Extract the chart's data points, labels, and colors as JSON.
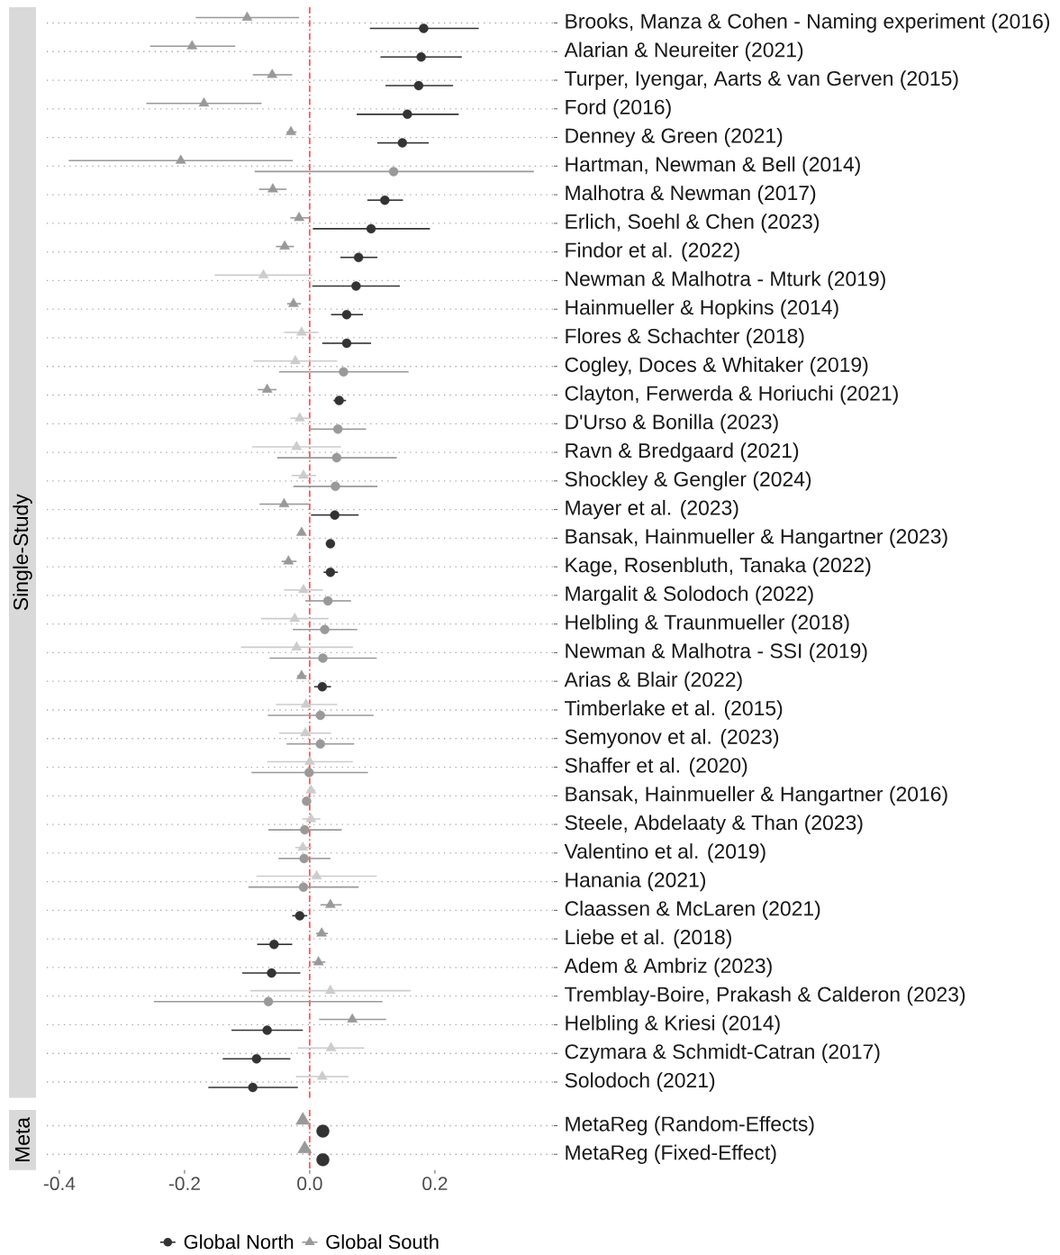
{
  "chart_data": [
    {
      "type": "scatter",
      "orientation": "horizontal",
      "title": "Single-Study",
      "categories": [
        "Brooks, Manza & Cohen - Naming experiment (2016)",
        "Alarian & Neureiter (2021)",
        "Turper, Iyengar, Aarts & van Gerven (2015)",
        "Ford (2016)",
        "Denney & Green (2021)",
        "Hartman, Newman & Bell (2014)",
        "Malhotra & Newman (2017)",
        "Erlich, Soehl & Chen (2023)",
        "Findor et al. (2022)",
        "Newman & Malhotra - Mturk (2019)",
        "Hainmueller & Hopkins (2014)",
        "Flores & Schachter (2018)",
        "Cogley, Doces & Whitaker (2019)",
        "Clayton, Ferwerda & Horiuchi (2021)",
        "D'Urso & Bonilla (2023)",
        "Ravn & Bredgaard (2021)",
        "Shockley & Gengler (2024)",
        "Mayer et al. (2023)",
        "Bansak, Hainmueller & Hangartner (2023)",
        "Kage, Rosenbluth, Tanaka (2022)",
        "Margalit & Solodoch (2022)",
        "Helbling & Traunmueller (2018)",
        "Newman & Malhotra - SSI (2019)",
        "Arias & Blair (2022)",
        "Timberlake et al. (2015)",
        "Semyonov et al. (2023)",
        "Shaffer et al. (2020)",
        "Bansak, Hainmueller & Hangartner (2016)",
        "Steele, Abdelaaty & Than (2023)",
        "Valentino et al. (2019)",
        "Hanania (2021)",
        "Claassen & McLaren (2021)",
        "Liebe et al. (2018)",
        "Adem & Ambriz (2023)",
        "Tremblay-Boire, Prakash & Calderon (2023)",
        "Helbling & Kriesi (2014)",
        "Czymara & Schmidt-Catran (2017)",
        "Solodoch (2021)"
      ],
      "series": [
        {
          "marker": "circle",
          "values": [
            0.182,
            0.178,
            0.174,
            0.156,
            0.148,
            0.134,
            0.12,
            0.098,
            0.078,
            0.074,
            0.059,
            0.059,
            0.054,
            0.047,
            0.045,
            0.043,
            0.041,
            0.04,
            0.033,
            0.033,
            0.029,
            0.024,
            0.021,
            0.02,
            0.017,
            0.017,
            -0.001,
            -0.005,
            -0.008,
            -0.009,
            -0.01,
            -0.016,
            -0.057,
            -0.061,
            -0.066,
            -0.068,
            -0.085,
            -0.091
          ],
          "errors": [
            [
              0.096,
              0.27
            ],
            [
              0.113,
              0.243
            ],
            [
              0.121,
              0.229
            ],
            [
              0.075,
              0.238
            ],
            [
              0.108,
              0.19
            ],
            [
              -0.088,
              0.358
            ],
            [
              0.092,
              0.149
            ],
            [
              0.005,
              0.192
            ],
            [
              0.049,
              0.108
            ],
            [
              0.004,
              0.144
            ],
            [
              0.034,
              0.085
            ],
            [
              0.02,
              0.098
            ],
            [
              -0.049,
              0.158
            ],
            [
              0.038,
              0.058
            ],
            [
              0.001,
              0.09
            ],
            [
              -0.052,
              0.139
            ],
            [
              -0.026,
              0.108
            ],
            [
              0.002,
              0.078
            ],
            [
              0.027,
              0.04
            ],
            [
              0.022,
              0.045
            ],
            [
              -0.007,
              0.066
            ],
            [
              -0.027,
              0.076
            ],
            [
              -0.064,
              0.107
            ],
            [
              0.007,
              0.034
            ],
            [
              -0.067,
              0.102
            ],
            [
              -0.037,
              0.071
            ],
            [
              -0.093,
              0.093
            ],
            [
              -0.011,
              0.001
            ],
            [
              -0.066,
              0.051
            ],
            [
              -0.05,
              0.033
            ],
            [
              -0.098,
              0.078
            ],
            [
              -0.028,
              -0.004
            ],
            [
              -0.084,
              -0.028
            ],
            [
              -0.108,
              -0.015
            ],
            [
              -0.249,
              0.116
            ],
            [
              -0.125,
              -0.011
            ],
            [
              -0.139,
              -0.031
            ],
            [
              -0.162,
              -0.019
            ]
          ],
          "colors": [
            "#333333",
            "#333333",
            "#333333",
            "#333333",
            "#333333",
            "#999999",
            "#333333",
            "#333333",
            "#333333",
            "#333333",
            "#333333",
            "#333333",
            "#999999",
            "#333333",
            "#999999",
            "#999999",
            "#999999",
            "#333333",
            "#333333",
            "#333333",
            "#999999",
            "#999999",
            "#999999",
            "#333333",
            "#999999",
            "#999999",
            "#999999",
            "#999999",
            "#999999",
            "#999999",
            "#999999",
            "#333333",
            "#333333",
            "#333333",
            "#999999",
            "#333333",
            "#333333",
            "#333333"
          ]
        },
        {
          "marker": "triangle",
          "values": [
            -0.1,
            -0.188,
            -0.06,
            -0.169,
            -0.03,
            -0.206,
            -0.059,
            -0.017,
            -0.04,
            -0.074,
            -0.026,
            -0.013,
            -0.023,
            -0.068,
            -0.016,
            -0.021,
            -0.01,
            -0.041,
            -0.013,
            -0.034,
            -0.01,
            -0.024,
            -0.021,
            -0.013,
            -0.006,
            -0.007,
            0.0,
            0.002,
            0.002,
            -0.011,
            0.011,
            0.033,
            0.019,
            0.014,
            0.033,
            0.068,
            0.034,
            0.02
          ],
          "errors": [
            [
              -0.182,
              -0.017
            ],
            [
              -0.255,
              -0.119
            ],
            [
              -0.091,
              -0.028
            ],
            [
              -0.261,
              -0.077
            ],
            [
              -0.037,
              -0.021
            ],
            [
              -0.385,
              -0.027
            ],
            [
              -0.081,
              -0.037
            ],
            [
              -0.031,
              -0.001
            ],
            [
              -0.054,
              -0.025
            ],
            [
              -0.152,
              0.004
            ],
            [
              -0.036,
              -0.014
            ],
            [
              -0.041,
              0.014
            ],
            [
              -0.09,
              0.044
            ],
            [
              -0.083,
              -0.053
            ],
            [
              -0.031,
              0.0
            ],
            [
              -0.092,
              0.05
            ],
            [
              -0.029,
              0.01
            ],
            [
              -0.08,
              -0.001
            ],
            null,
            [
              -0.045,
              -0.021
            ],
            [
              -0.041,
              0.021
            ],
            [
              -0.078,
              0.03
            ],
            [
              -0.11,
              0.069
            ],
            [
              -0.02,
              -0.005
            ],
            [
              -0.054,
              0.044
            ],
            [
              -0.049,
              0.034
            ],
            [
              -0.068,
              0.069
            ],
            [
              -0.004,
              0.009
            ],
            [
              -0.012,
              0.017
            ],
            [
              -0.023,
              0.003
            ],
            [
              -0.085,
              0.107
            ],
            [
              0.017,
              0.051
            ],
            [
              0.01,
              0.029
            ],
            [
              0.004,
              0.025
            ],
            [
              -0.095,
              0.161
            ],
            [
              0.015,
              0.122
            ],
            [
              -0.019,
              0.087
            ],
            [
              -0.022,
              0.062
            ]
          ],
          "colors": [
            "#999999",
            "#999999",
            "#999999",
            "#999999",
            "#999999",
            "#999999",
            "#999999",
            "#999999",
            "#999999",
            "#cccccc",
            "#999999",
            "#cccccc",
            "#cccccc",
            "#999999",
            "#cccccc",
            "#cccccc",
            "#cccccc",
            "#999999",
            "#999999",
            "#999999",
            "#cccccc",
            "#cccccc",
            "#cccccc",
            "#999999",
            "#cccccc",
            "#cccccc",
            "#cccccc",
            "#cccccc",
            "#cccccc",
            "#cccccc",
            "#cccccc",
            "#999999",
            "#999999",
            "#999999",
            "#cccccc",
            "#999999",
            "#cccccc",
            "#cccccc"
          ]
        }
      ],
      "xlim": [
        -0.42,
        0.39
      ],
      "tick_labels": "y",
      "grid": "y",
      "ref_lines": [
        {
          "axis": "x",
          "value": 0,
          "color": "#ee1111",
          "line_style": "dashed"
        }
      ]
    },
    {
      "type": "scatter",
      "orientation": "horizontal",
      "title": "Meta",
      "categories": [
        "MetaReg (Random-Effects)",
        "MetaReg (Fixed-Effect)"
      ],
      "series": [
        {
          "name": "Global North",
          "marker": "circle",
          "color": "#333333",
          "values": [
            0.021,
            0.021
          ]
        },
        {
          "name": "Global South",
          "marker": "triangle",
          "color": "#999999",
          "values": [
            -0.011,
            -0.008
          ]
        }
      ],
      "xlim": [
        -0.42,
        0.39
      ],
      "xticks": [
        -0.4,
        -0.2,
        {
          "value": 0,
          "label": "0.0"
        },
        0.2
      ],
      "grid": "y",
      "legend": "bottom",
      "ref_lines": [
        {
          "axis": "x",
          "value": 0,
          "color": "#ee1111",
          "line_style": "dashed"
        }
      ]
    }
  ]
}
